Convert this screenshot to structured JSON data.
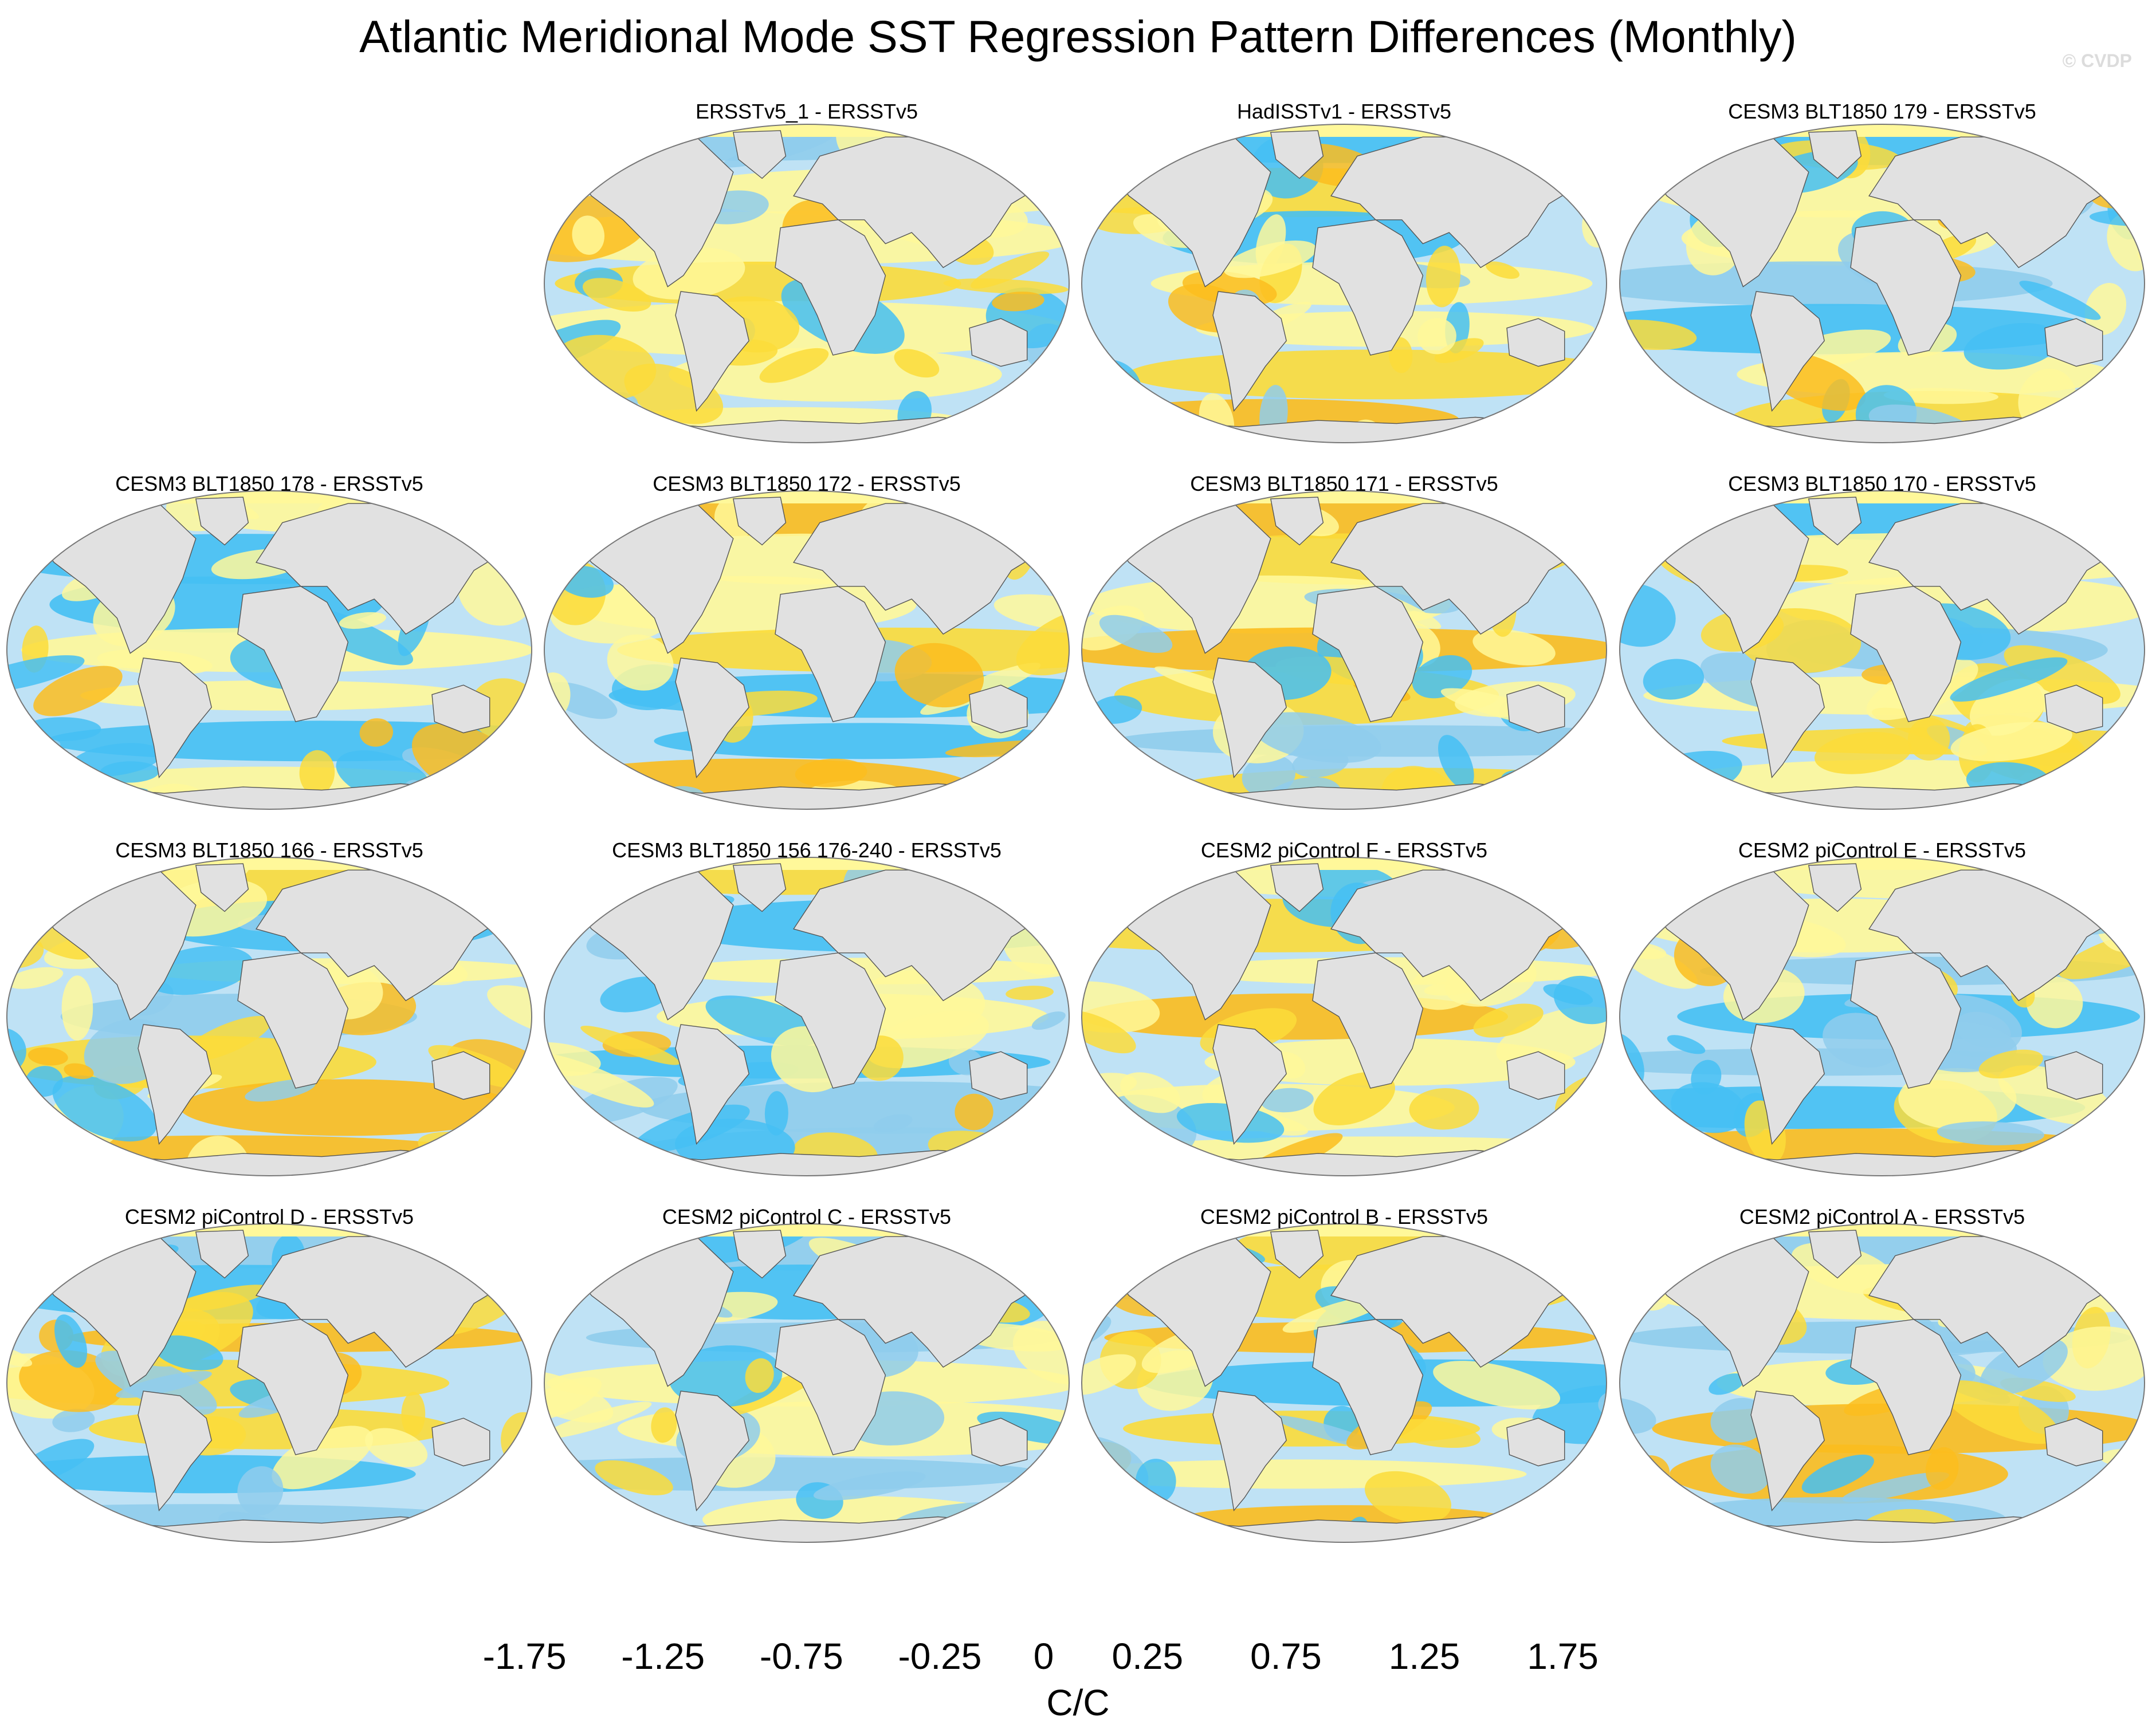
{
  "title": "Atlantic Meridional Mode SST Regression Pattern Differences (Monthly)",
  "watermark": "© CVDP",
  "chart_data": {
    "type": "filled-contour-map-grid",
    "projection": "Robinson (global)",
    "layout": "4 rows x 4 columns, top-left empty",
    "panels": [
      {
        "label": "ERSSTv5_1 - ERSSTv5",
        "row": 0,
        "col": 1
      },
      {
        "label": "HadISSTv1 - ERSSTv5",
        "row": 0,
        "col": 2
      },
      {
        "label": "CESM3 BLT1850 179 - ERSSTv5",
        "row": 0,
        "col": 3
      },
      {
        "label": "CESM3 BLT1850 178 - ERSSTv5",
        "row": 1,
        "col": 0
      },
      {
        "label": "CESM3 BLT1850 172 - ERSSTv5",
        "row": 1,
        "col": 1
      },
      {
        "label": "CESM3 BLT1850 171 - ERSSTv5",
        "row": 1,
        "col": 2
      },
      {
        "label": "CESM3 BLT1850 170 - ERSSTv5",
        "row": 1,
        "col": 3
      },
      {
        "label": "CESM3 BLT1850 166 - ERSSTv5",
        "row": 2,
        "col": 0
      },
      {
        "label": "CESM3 BLT1850 156 176-240 - ERSSTv5",
        "row": 2,
        "col": 1
      },
      {
        "label": "CESM2 piControl F - ERSSTv5",
        "row": 2,
        "col": 2
      },
      {
        "label": "CESM2 piControl E - ERSSTv5",
        "row": 2,
        "col": 3
      },
      {
        "label": "CESM2 piControl D - ERSSTv5",
        "row": 3,
        "col": 0
      },
      {
        "label": "CESM2 piControl C - ERSSTv5",
        "row": 3,
        "col": 1
      },
      {
        "label": "CESM2 piControl B - ERSSTv5",
        "row": 3,
        "col": 2
      },
      {
        "label": "CESM2 piControl A - ERSSTv5",
        "row": 3,
        "col": 3
      }
    ],
    "colorbar": {
      "units": "C/C",
      "levels": [
        -2.0,
        -1.75,
        -1.5,
        -1.25,
        -1.0,
        -0.75,
        -0.5,
        -0.25,
        0,
        0.25,
        0.5,
        0.75,
        1.0,
        1.25,
        1.5,
        1.75,
        2.0
      ],
      "tick_labels": [
        {
          "value": -1.75,
          "label": "-1.75"
        },
        {
          "value": -1.25,
          "label": "-1.25"
        },
        {
          "value": -0.75,
          "label": "-0.75"
        },
        {
          "value": -0.25,
          "label": "-0.25"
        },
        {
          "value": 0,
          "label": "0"
        },
        {
          "value": 0.25,
          "label": "0.25"
        },
        {
          "value": 0.75,
          "label": "0.75"
        },
        {
          "value": 1.25,
          "label": "1.25"
        },
        {
          "value": 1.75,
          "label": "1.75"
        }
      ],
      "colors": [
        "#8a2be2",
        "#3b10ee",
        "#1c28f0",
        "#3e62dc",
        "#2d78ea",
        "#2293ee",
        "#09b2f7",
        "#45c0f3",
        "#8fcdec",
        "#bfe2f5",
        "#fff89a",
        "#fbdc3a",
        "#fbbd1e",
        "#f99c07",
        "#fc7405",
        "#fd3e02",
        "#ff0000",
        "#d30000",
        "#d63f3f",
        "#ffb3b3"
      ]
    },
    "land_color": "#e1e1e1",
    "coast_color": "#555555"
  }
}
